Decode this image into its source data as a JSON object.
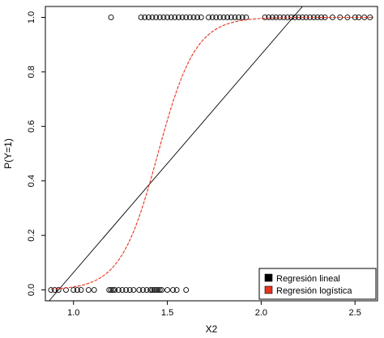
{
  "chart_data": {
    "type": "scatter",
    "xlabel": "X2",
    "ylabel": "P(Y=1)",
    "xlim": [
      0.85,
      2.62
    ],
    "ylim": [
      -0.04,
      1.04
    ],
    "x_ticks": [
      1.0,
      1.5,
      2.0,
      2.5
    ],
    "x_tick_labels": [
      "1.0",
      "1.5",
      "2.0",
      "2.5"
    ],
    "y_ticks": [
      0.0,
      0.2,
      0.4,
      0.6,
      0.8,
      1.0
    ],
    "y_tick_labels": [
      "0.0",
      "0.2",
      "0.4",
      "0.6",
      "0.8",
      "1.0"
    ],
    "points_y0": {
      "y": 0,
      "x": [
        0.88,
        0.9,
        0.92,
        0.96,
        1.0,
        1.02,
        1.04,
        1.08,
        1.11,
        1.19,
        1.2,
        1.21,
        1.22,
        1.24,
        1.26,
        1.28,
        1.3,
        1.32,
        1.35,
        1.37,
        1.39,
        1.41,
        1.42,
        1.43,
        1.44,
        1.45,
        1.46,
        1.47,
        1.5,
        1.53,
        1.55,
        1.6
      ]
    },
    "points_y1": {
      "y": 1,
      "x": [
        1.2,
        1.36,
        1.38,
        1.4,
        1.42,
        1.44,
        1.46,
        1.48,
        1.5,
        1.52,
        1.54,
        1.56,
        1.58,
        1.6,
        1.62,
        1.64,
        1.66,
        1.68,
        1.72,
        1.74,
        1.76,
        1.78,
        1.8,
        1.82,
        1.84,
        1.86,
        1.88,
        1.9,
        1.92,
        2.02,
        2.04,
        2.06,
        2.08,
        2.1,
        2.12,
        2.14,
        2.16,
        2.18,
        2.2,
        2.22,
        2.24,
        2.26,
        2.28,
        2.3,
        2.32,
        2.34,
        2.38,
        2.42,
        2.46,
        2.5,
        2.52,
        2.55,
        2.58
      ]
    },
    "series": [
      {
        "name": "Regresión lineal",
        "color": "#000000",
        "kind": "linear",
        "slope": 0.8,
        "intercept": -0.736
      },
      {
        "name": "Regresión logística",
        "color": "#e8321e",
        "kind": "logistic",
        "midpoint": 1.45,
        "rate": 10
      }
    ],
    "legend": {
      "position": "bottom-right",
      "entries": [
        "Regresión lineal",
        "Regresión logística"
      ],
      "colors": [
        "#000000",
        "#e8321e"
      ]
    }
  }
}
